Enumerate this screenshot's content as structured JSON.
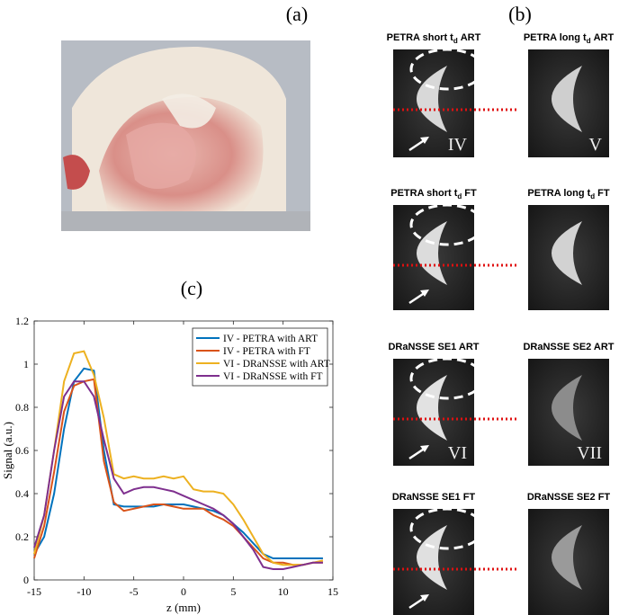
{
  "panel_labels": {
    "a": "(a)",
    "b": "(b)",
    "c": "(c)"
  },
  "mri": {
    "rows": [
      {
        "left": {
          "title": {
            "text": "PETRA short t",
            "sub": "d",
            "tail": "ART"
          },
          "label": "IV"
        },
        "right": {
          "title": {
            "text": "PETRA long t",
            "sub": "d",
            "tail": "ART"
          },
          "label": "V"
        }
      },
      {
        "left": {
          "title": {
            "text": "PETRA short t",
            "sub": "d",
            "tail": "FT"
          }
        },
        "right": {
          "title": {
            "text": "PETRA long t",
            "sub": "d",
            "tail": "FT"
          }
        }
      },
      {
        "left": {
          "title": {
            "text": "DRaNSSE SE1 ART"
          },
          "label": "VI"
        },
        "right": {
          "title": {
            "text": "DRaNSSE SE2 ART"
          },
          "label": "VII"
        }
      },
      {
        "left": {
          "title": {
            "text": "DRaNSSE SE1 FT"
          }
        },
        "right": {
          "title": {
            "text": "DRaNSSE SE2 FT"
          }
        }
      }
    ]
  },
  "chart_data": {
    "type": "line",
    "xlabel": "z (mm)",
    "ylabel": "Signal (a.u.)",
    "x": [
      -15,
      -14,
      -13,
      -12,
      -11,
      -10,
      -9,
      -8,
      -7,
      -6,
      -5,
      -4,
      -3,
      -2,
      -1,
      0,
      1,
      2,
      3,
      4,
      5,
      6,
      7,
      8,
      9,
      10,
      11,
      12,
      13,
      14
    ],
    "series": [
      {
        "name": "IV - PETRA with ART",
        "color": "#0072BD",
        "values": [
          0.12,
          0.2,
          0.4,
          0.7,
          0.92,
          0.98,
          0.97,
          0.6,
          0.35,
          0.34,
          0.34,
          0.34,
          0.34,
          0.35,
          0.35,
          0.35,
          0.34,
          0.33,
          0.32,
          0.3,
          0.26,
          0.22,
          0.17,
          0.12,
          0.1,
          0.1,
          0.1,
          0.1,
          0.1,
          0.1
        ]
      },
      {
        "name": "IV - PETRA with FT",
        "color": "#D95319",
        "values": [
          0.1,
          0.25,
          0.5,
          0.78,
          0.9,
          0.92,
          0.93,
          0.55,
          0.36,
          0.32,
          0.33,
          0.34,
          0.35,
          0.35,
          0.34,
          0.33,
          0.33,
          0.33,
          0.3,
          0.28,
          0.25,
          0.2,
          0.15,
          0.1,
          0.08,
          0.08,
          0.07,
          0.07,
          0.08,
          0.08
        ]
      },
      {
        "name": "VI - DRaNSSE with ART",
        "color": "#EDB120",
        "values": [
          0.12,
          0.3,
          0.6,
          0.92,
          1.05,
          1.06,
          0.95,
          0.75,
          0.49,
          0.47,
          0.48,
          0.47,
          0.47,
          0.48,
          0.47,
          0.48,
          0.42,
          0.41,
          0.41,
          0.4,
          0.35,
          0.28,
          0.2,
          0.12,
          0.08,
          0.07,
          0.07,
          0.07,
          0.08,
          0.09
        ]
      },
      {
        "name": "VI - DRaNSSE with FT",
        "color": "#7E2F8E",
        "values": [
          0.15,
          0.3,
          0.6,
          0.85,
          0.92,
          0.92,
          0.85,
          0.65,
          0.47,
          0.4,
          0.42,
          0.43,
          0.43,
          0.42,
          0.41,
          0.39,
          0.37,
          0.35,
          0.33,
          0.3,
          0.26,
          0.2,
          0.14,
          0.06,
          0.05,
          0.05,
          0.06,
          0.07,
          0.08,
          0.08
        ]
      }
    ],
    "xlim": [
      -15,
      15
    ],
    "ylim": [
      0,
      1.2
    ],
    "xticks": [
      -15,
      -10,
      -5,
      0,
      5,
      10,
      15
    ],
    "yticks": [
      0,
      0.2,
      0.4,
      0.6,
      0.8,
      1,
      1.2
    ],
    "legend": "upper right"
  }
}
